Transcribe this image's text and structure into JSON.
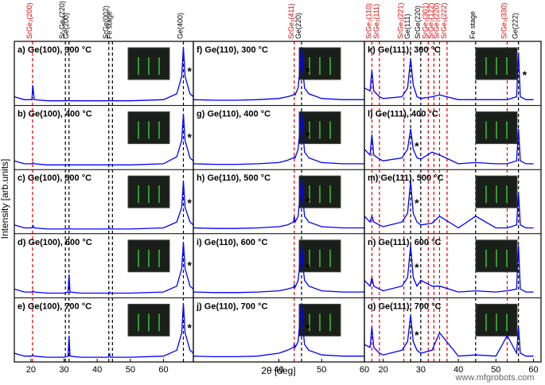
{
  "y_label": "Intensity [arb.units]",
  "x_label": "2θ [deg]",
  "watermark": "www.mfgrobots.com",
  "chart_data": [
    {
      "type": "line",
      "color": "#0000ff",
      "xlim": [
        15,
        69
      ],
      "xticks": [
        20,
        30,
        40,
        50,
        60
      ],
      "ylim": [
        0,
        1.1
      ],
      "annotation": "*",
      "reference_lines": [
        {
          "label": "SrGe₂(200)",
          "x": 20.5,
          "color": "#e00000"
        },
        {
          "label": "SrₓGeᵧ(220)",
          "x": 30.4,
          "color": "#000000"
        },
        {
          "label": "Ge(200)",
          "x": 31.5,
          "color": "#000000"
        },
        {
          "label": "SrGe(002)",
          "x": 43.5,
          "color": "#000000"
        },
        {
          "label": "Fe stage",
          "x": 44.6,
          "color": "#000000"
        },
        {
          "label": "Ge(400)",
          "x": 66,
          "color": "#000000"
        }
      ],
      "x": [
        15,
        18,
        20.3,
        20.6,
        21,
        25,
        30,
        31.2,
        31.5,
        31.8,
        35,
        40,
        43.4,
        43.7,
        44,
        50,
        60,
        64,
        65.5,
        66,
        66.5,
        68,
        69
      ],
      "panels": [
        {
          "label": "a) Ge(100), 300 °C",
          "values": [
            0.15,
            0.1,
            0.1,
            0.35,
            0.1,
            0.08,
            0.08,
            0.08,
            0.1,
            0.08,
            0.08,
            0.08,
            0.08,
            0.09,
            0.08,
            0.08,
            0.1,
            0.2,
            0.5,
            1.0,
            0.5,
            0.2,
            0.15
          ]
        },
        {
          "label": "b) Ge(100), 400 °C",
          "values": [
            0.15,
            0.1,
            0.1,
            0.12,
            0.1,
            0.08,
            0.08,
            0.08,
            0.09,
            0.08,
            0.08,
            0.08,
            0.08,
            0.09,
            0.08,
            0.08,
            0.1,
            0.22,
            0.5,
            0.95,
            0.5,
            0.2,
            0.15
          ]
        },
        {
          "label": "c) Ge(100), 500 °C",
          "values": [
            0.15,
            0.1,
            0.1,
            0.14,
            0.1,
            0.08,
            0.08,
            0.08,
            0.1,
            0.08,
            0.08,
            0.08,
            0.08,
            0.1,
            0.08,
            0.08,
            0.1,
            0.2,
            0.45,
            0.9,
            0.45,
            0.2,
            0.15
          ]
        },
        {
          "label": "d) Ge(100), 600 °C",
          "values": [
            0.15,
            0.1,
            0.1,
            0.12,
            0.1,
            0.08,
            0.08,
            0.1,
            0.4,
            0.1,
            0.08,
            0.08,
            0.08,
            0.1,
            0.08,
            0.08,
            0.1,
            0.2,
            0.5,
            0.95,
            0.5,
            0.2,
            0.15
          ]
        },
        {
          "label": "e) Ge(100), 700 °C",
          "values": [
            0.15,
            0.1,
            0.1,
            0.12,
            0.1,
            0.08,
            0.08,
            0.1,
            0.45,
            0.1,
            0.08,
            0.08,
            0.08,
            0.15,
            0.08,
            0.08,
            0.1,
            0.2,
            0.5,
            1.0,
            0.5,
            0.2,
            0.15
          ]
        }
      ]
    },
    {
      "type": "line",
      "color": "#0000ff",
      "xlim": [
        20,
        60
      ],
      "xticks": [
        40,
        50,
        60
      ],
      "ylim": [
        0,
        1.1
      ],
      "annotation": "*",
      "reference_lines": [
        {
          "label": "SrGe₂(411)",
          "x": 43.6,
          "color": "#e00000"
        },
        {
          "label": "Ge(220)",
          "x": 45.3,
          "color": "#000000"
        }
      ],
      "x": [
        20,
        25,
        30,
        35,
        40,
        42,
        43.4,
        43.6,
        43.8,
        44.5,
        45,
        45.3,
        45.6,
        46,
        47,
        50,
        55,
        60
      ],
      "panels": [
        {
          "label": "f) Ge(110), 300 °C",
          "values": [
            0.1,
            0.09,
            0.09,
            0.1,
            0.12,
            0.15,
            0.18,
            0.2,
            0.18,
            0.3,
            0.7,
            1.0,
            0.6,
            0.3,
            0.2,
            0.12,
            0.1,
            0.1
          ]
        },
        {
          "label": "g) Ge(110), 400 °C",
          "values": [
            0.1,
            0.09,
            0.09,
            0.1,
            0.12,
            0.16,
            0.2,
            0.22,
            0.2,
            0.35,
            0.75,
            1.0,
            0.65,
            0.3,
            0.2,
            0.12,
            0.1,
            0.1
          ]
        },
        {
          "label": "h) Ge(110), 500 °C",
          "values": [
            0.1,
            0.09,
            0.09,
            0.1,
            0.12,
            0.15,
            0.2,
            0.3,
            0.2,
            0.3,
            0.7,
            0.95,
            0.6,
            0.3,
            0.2,
            0.12,
            0.1,
            0.1
          ]
        },
        {
          "label": "i) Ge(110), 600 °C",
          "values": [
            0.1,
            0.09,
            0.09,
            0.1,
            0.12,
            0.15,
            0.18,
            0.22,
            0.18,
            0.3,
            0.65,
            0.9,
            0.55,
            0.3,
            0.2,
            0.12,
            0.1,
            0.1
          ]
        },
        {
          "label": "j) Ge(110), 700 °C",
          "values": [
            0.1,
            0.09,
            0.09,
            0.1,
            0.15,
            0.2,
            0.25,
            0.3,
            0.25,
            0.35,
            0.8,
            1.0,
            0.6,
            0.3,
            0.2,
            0.12,
            0.1,
            0.1
          ]
        }
      ]
    },
    {
      "type": "line",
      "color": "#0000ff",
      "xlim": [
        15,
        62
      ],
      "xticks": [
        20,
        30,
        40,
        50,
        60
      ],
      "ylim": [
        0,
        1.1
      ],
      "annotation": "*",
      "reference_lines": [
        {
          "label": "SrGe₂(110)",
          "x": 17,
          "color": "#e00000"
        },
        {
          "label": "SrGe₂(111)",
          "x": 19,
          "color": "#e00000"
        },
        {
          "label": "SrGe₂(221)",
          "x": 25.5,
          "color": "#e00000"
        },
        {
          "label": "Ge(111)",
          "x": 27.3,
          "color": "#000000"
        },
        {
          "label": "SrGe(220)",
          "x": 30,
          "color": "#000000"
        },
        {
          "label": "SrGe₂(301)",
          "x": 32,
          "color": "#e00000"
        },
        {
          "label": "SrGe₂(122)",
          "x": 33.5,
          "color": "#e00000"
        },
        {
          "label": "SrGe₂(220)",
          "x": 35,
          "color": "#e00000"
        },
        {
          "label": "SrGe₂(222)",
          "x": 37,
          "color": "#e00000"
        },
        {
          "label": "Fe stage",
          "x": 44.6,
          "color": "#000000"
        },
        {
          "label": "SrGe₂(330)",
          "x": 53,
          "color": "#e00000"
        },
        {
          "label": "Ge(222)",
          "x": 56,
          "color": "#000000"
        }
      ],
      "x": [
        15,
        16.5,
        17,
        17.5,
        19,
        20,
        25,
        26.5,
        27.3,
        28,
        29,
        30,
        33,
        35,
        40,
        44.6,
        50,
        53,
        55.5,
        56,
        56.5,
        58,
        60
      ],
      "panels": [
        {
          "label": "k) Ge(111), 300 °C",
          "values": [
            0.3,
            0.25,
            0.6,
            0.25,
            0.15,
            0.12,
            0.15,
            0.3,
            0.8,
            0.35,
            0.15,
            0.12,
            0.15,
            0.18,
            0.1,
            0.1,
            0.1,
            0.1,
            0.15,
            0.9,
            0.15,
            0.1,
            0.1
          ]
        },
        {
          "label": "l) Ge(111), 400 °C",
          "values": [
            0.35,
            0.25,
            0.6,
            0.25,
            0.18,
            0.15,
            0.2,
            0.35,
            0.7,
            0.35,
            0.2,
            0.18,
            0.3,
            0.25,
            0.1,
            0.12,
            0.1,
            0.1,
            0.15,
            0.7,
            0.15,
            0.1,
            0.1
          ]
        },
        {
          "label": "m) Ge(111), 500 °C",
          "values": [
            0.3,
            0.2,
            0.3,
            0.2,
            0.15,
            0.12,
            0.2,
            0.35,
            0.9,
            0.35,
            0.2,
            0.15,
            0.18,
            0.3,
            0.1,
            0.3,
            0.1,
            0.1,
            0.15,
            0.7,
            0.15,
            0.1,
            0.1
          ]
        },
        {
          "label": "n) Ge(111), 600 °C",
          "values": [
            0.3,
            0.2,
            0.35,
            0.2,
            0.15,
            0.12,
            0.2,
            0.35,
            0.9,
            0.35,
            0.2,
            0.3,
            0.2,
            0.2,
            0.1,
            0.12,
            0.1,
            0.12,
            0.15,
            0.9,
            0.15,
            0.1,
            0.1
          ]
        },
        {
          "label": "o) Ge(111), 700 °C",
          "values": [
            0.3,
            0.25,
            0.6,
            0.25,
            0.15,
            0.12,
            0.2,
            0.35,
            0.8,
            0.35,
            0.2,
            0.15,
            0.2,
            0.5,
            0.1,
            0.12,
            0.1,
            0.45,
            0.15,
            0.6,
            0.15,
            0.1,
            0.1
          ]
        }
      ]
    }
  ]
}
